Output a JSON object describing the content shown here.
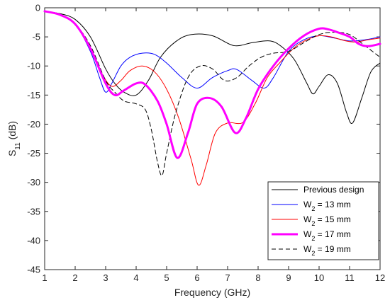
{
  "chart_data": {
    "type": "line",
    "xlabel": "Frequency (GHz)",
    "ylabel": {
      "base": "S",
      "sub": "11",
      "tail": " (dB)"
    },
    "xlim": [
      1,
      12
    ],
    "ylim": [
      -45,
      0
    ],
    "xticks": [
      1,
      2,
      3,
      4,
      5,
      6,
      7,
      8,
      9,
      10,
      11,
      12
    ],
    "yticks": [
      0,
      -5,
      -10,
      -15,
      -20,
      -25,
      -30,
      -35,
      -40,
      -45
    ],
    "grid": false,
    "legend_position": "bottom-right",
    "series": [
      {
        "name": "Previous design",
        "legend": {
          "base": "Previous design",
          "sub": "",
          "tail": ""
        },
        "color": "#000000",
        "dash": "none",
        "width": 1,
        "x": [
          1,
          1.5,
          2,
          2.5,
          3,
          3.3,
          3.6,
          4,
          4.4,
          4.8,
          5.3,
          5.8,
          6.5,
          7.2,
          7.8,
          8.4,
          8.8,
          9.2,
          9.6,
          9.8,
          10.0,
          10.3,
          10.6,
          10.9,
          11.1,
          11.4,
          11.7,
          12
        ],
        "y": [
          -0.6,
          -1.0,
          -2.0,
          -5.0,
          -10.5,
          -13.0,
          -14.5,
          -15.0,
          -12.5,
          -8.5,
          -5.8,
          -4.6,
          -4.8,
          -6.5,
          -6.0,
          -5.7,
          -6.8,
          -9.0,
          -13.0,
          -14.8,
          -13.5,
          -11.5,
          -13.0,
          -18.0,
          -19.8,
          -15.5,
          -11.0,
          -9.5
        ]
      },
      {
        "name": "W2 = 13 mm",
        "legend": {
          "base": "W",
          "sub": "2",
          "tail": " = 13 mm"
        },
        "color": "#0000ff",
        "dash": "none",
        "width": 1,
        "x": [
          1,
          1.5,
          2,
          2.5,
          2.8,
          3.0,
          3.2,
          3.5,
          3.8,
          4.2,
          4.6,
          5.0,
          5.5,
          6.0,
          6.5,
          7.0,
          7.3,
          7.8,
          8.2,
          8.5,
          9.0,
          9.5,
          10.0,
          10.5,
          11.0,
          11.5,
          12
        ],
        "y": [
          -0.6,
          -1.2,
          -2.8,
          -7.5,
          -12.0,
          -14.5,
          -13.0,
          -10.0,
          -8.5,
          -7.8,
          -8.0,
          -9.5,
          -12.0,
          -13.8,
          -12.0,
          -10.8,
          -10.6,
          -12.5,
          -13.8,
          -12.0,
          -7.5,
          -5.5,
          -4.8,
          -5.2,
          -5.7,
          -5.5,
          -5.0
        ]
      },
      {
        "name": "W2 = 15 mm",
        "legend": {
          "base": "W",
          "sub": "2",
          "tail": " = 15 mm"
        },
        "color": "#ff0000",
        "dash": "none",
        "width": 1,
        "x": [
          1,
          1.5,
          2,
          2.5,
          2.9,
          3.2,
          3.5,
          3.8,
          4.2,
          4.6,
          5.0,
          5.4,
          5.8,
          6.05,
          6.3,
          6.6,
          7.0,
          7.5,
          7.9,
          8.3,
          8.7,
          9.2,
          9.6,
          10.0,
          10.4,
          10.8,
          11.2,
          11.6,
          12
        ],
        "y": [
          -0.6,
          -1.2,
          -2.8,
          -7.0,
          -11.5,
          -13.5,
          -12.5,
          -10.8,
          -10.0,
          -11.0,
          -14.0,
          -19.0,
          -26.0,
          -30.5,
          -27.0,
          -21.5,
          -19.8,
          -19.7,
          -16.5,
          -12.0,
          -9.5,
          -6.8,
          -5.5,
          -4.8,
          -5.0,
          -5.6,
          -5.9,
          -5.5,
          -5.2
        ]
      },
      {
        "name": "W2 = 17 mm",
        "legend": {
          "base": "W",
          "sub": "2",
          "tail": " = 17 mm"
        },
        "color": "#ff00ff",
        "dash": "none",
        "width": 3,
        "x": [
          1,
          1.5,
          2,
          2.5,
          3.0,
          3.3,
          3.6,
          4.0,
          4.3,
          4.7,
          5.0,
          5.35,
          5.7,
          6.0,
          6.4,
          6.8,
          7.25,
          7.6,
          8.0,
          8.5,
          9.0,
          9.5,
          10.0,
          10.3,
          10.6,
          11.0,
          11.3,
          11.6,
          12
        ],
        "y": [
          -0.6,
          -1.2,
          -2.8,
          -7.0,
          -13.0,
          -15.0,
          -14.2,
          -13.0,
          -13.2,
          -16.0,
          -20.0,
          -25.8,
          -21.5,
          -16.5,
          -15.5,
          -17.0,
          -21.5,
          -19.0,
          -14.0,
          -10.0,
          -7.0,
          -4.8,
          -3.6,
          -3.7,
          -4.2,
          -5.0,
          -6.2,
          -6.6,
          -6.2
        ]
      },
      {
        "name": "W2 = 19 mm",
        "legend": {
          "base": "W",
          "sub": "2",
          "tail": " = 19 mm"
        },
        "color": "#000000",
        "dash": "6,4",
        "width": 1,
        "x": [
          1,
          1.5,
          2,
          2.5,
          3.0,
          3.3,
          3.6,
          4.0,
          4.3,
          4.5,
          4.7,
          4.85,
          5.0,
          5.3,
          5.7,
          6.1,
          6.5,
          6.9,
          7.3,
          7.7,
          8.1,
          8.5,
          9.0,
          9.5,
          10.0,
          10.5,
          11.0,
          11.5,
          12
        ],
        "y": [
          -0.6,
          -1.2,
          -2.8,
          -6.5,
          -12.5,
          -14.5,
          -16.0,
          -16.5,
          -17.5,
          -21.0,
          -26.5,
          -28.8,
          -25.0,
          -18.0,
          -12.0,
          -10.0,
          -10.5,
          -12.5,
          -12.0,
          -10.0,
          -8.5,
          -7.8,
          -7.5,
          -6.0,
          -4.6,
          -4.2,
          -4.6,
          -6.5,
          -8.5
        ]
      }
    ]
  }
}
